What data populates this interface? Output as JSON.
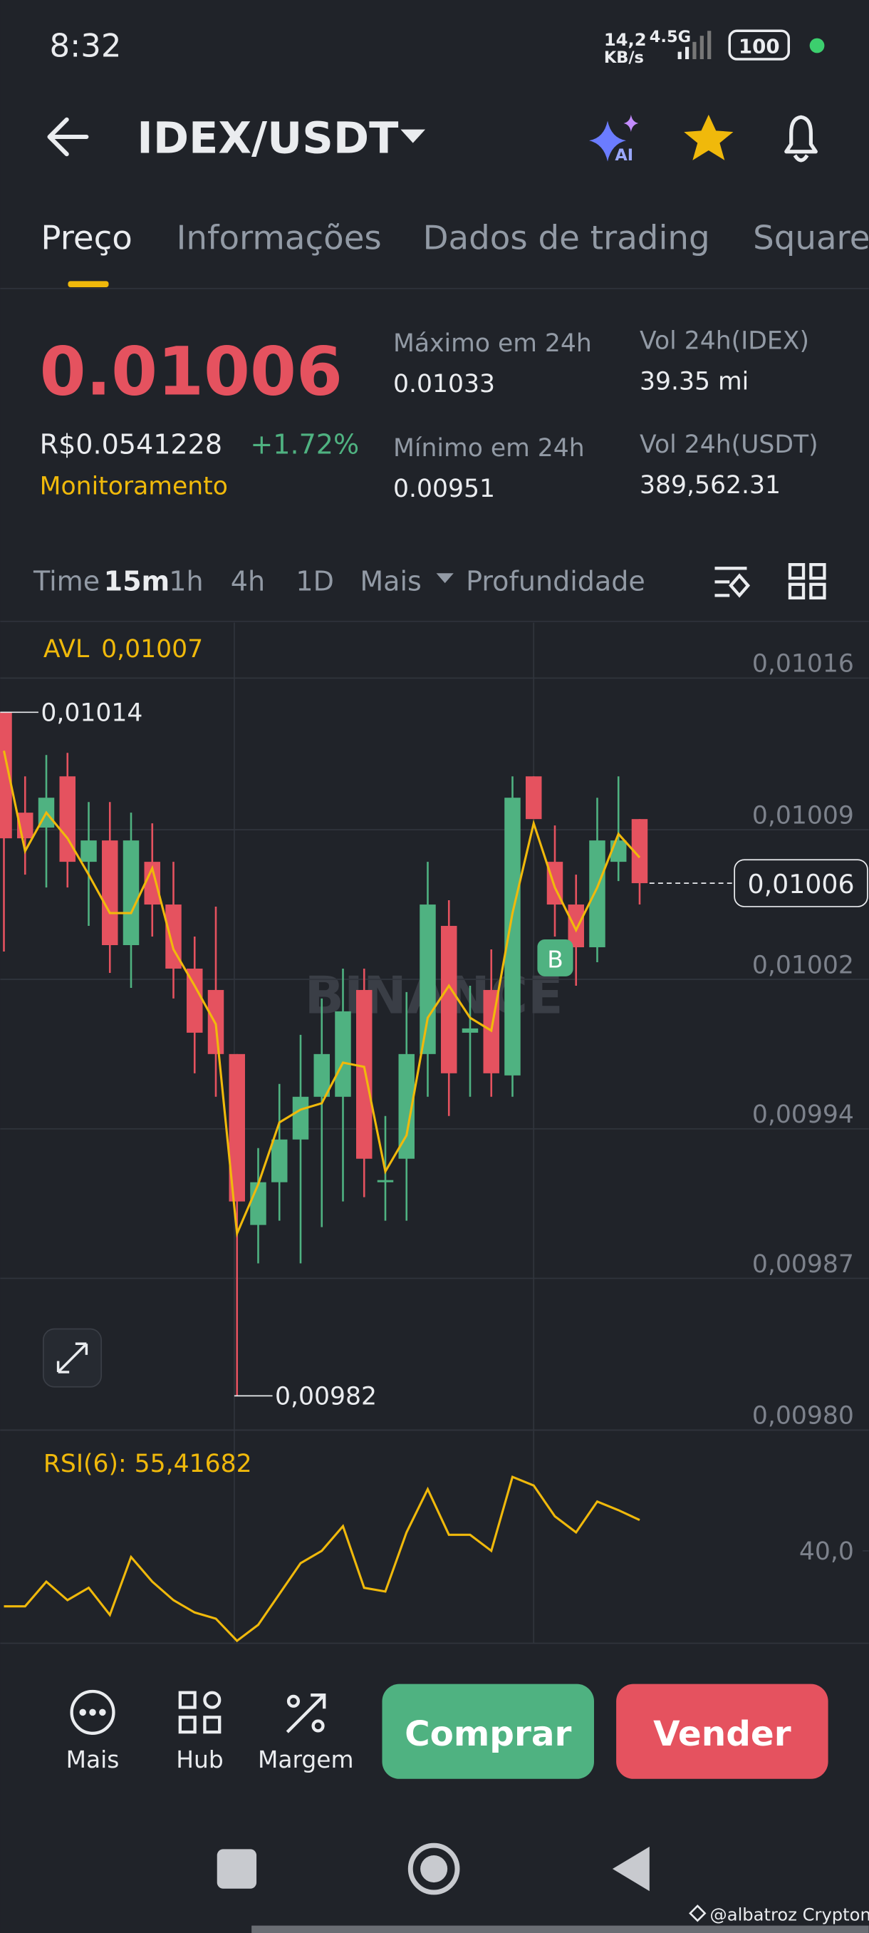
{
  "status_bar": {
    "time": "8:32",
    "speed": "14,2",
    "speed_unit": "KB/s",
    "network": "4.5G",
    "battery": "100"
  },
  "header": {
    "title": "IDEX/USDT",
    "ai_badge": "AI"
  },
  "tabs": [
    "Preço",
    "Informações",
    "Dados de trading",
    "Square"
  ],
  "ticker": {
    "price": "0.01006",
    "fiat_price": "R$0.0541228",
    "change": "+1.72%",
    "monitor": "Monitoramento",
    "stats": [
      {
        "label": "Máximo em 24h",
        "value": "0.01033"
      },
      {
        "label": "Mínimo em 24h",
        "value": "0.00951"
      },
      {
        "label": "Vol 24h(IDEX)",
        "value": "39.35 mi"
      },
      {
        "label": "Vol 24h(USDT)",
        "value": "389,562.31"
      }
    ]
  },
  "timeframes": [
    "Time",
    "15m",
    "1h",
    "4h",
    "1D",
    "Mais",
    "Profundidade"
  ],
  "chart_data": [
    {
      "type": "candlestick",
      "watermark": "BINANCE",
      "trade_marker": "B",
      "categories": [
        null,
        null,
        null,
        null,
        null,
        null,
        null,
        null,
        null,
        null,
        null,
        null,
        null,
        null,
        null,
        null,
        null,
        null,
        null,
        null,
        null,
        null,
        null,
        null,
        null,
        null,
        null,
        null,
        null,
        null,
        null
      ],
      "open": [
        0.01014,
        0.010093,
        0.010086,
        0.01011,
        0.01007,
        0.01008,
        0.010031,
        0.01007,
        0.01005,
        0.01002,
        0.01001,
        0.00998,
        0.0099,
        0.00992,
        0.00994,
        0.00996,
        0.00996,
        0.01001,
        0.00992,
        0.009931,
        0.00998,
        0.01004,
        0.00999,
        0.01001,
        0.00997,
        0.01011,
        0.01007,
        0.01005,
        0.01003,
        0.01007,
        0.01009
      ],
      "high": [
        0.01014,
        0.01011,
        0.01012,
        0.010121,
        0.010098,
        0.010098,
        0.010093,
        0.010088,
        0.01007,
        0.010035,
        0.010049,
        0.00998,
        0.009936,
        0.009966,
        0.009989,
        0.010006,
        0.01002,
        0.01002,
        0.009951,
        0.010009,
        0.01007,
        0.010052,
        0.010012,
        0.010029,
        0.01011,
        0.01011,
        0.010087,
        0.010064,
        0.0101,
        0.01011,
        0.01009
      ],
      "low": [
        0.010028,
        0.010064,
        0.010058,
        0.010058,
        0.01004,
        0.010018,
        0.010011,
        0.010035,
        0.010006,
        0.009971,
        0.00996,
        0.00982,
        0.009882,
        0.009902,
        0.009882,
        0.009899,
        0.009911,
        0.009913,
        0.009902,
        0.009902,
        0.00996,
        0.009951,
        0.00996,
        0.00996,
        0.00996,
        0.01009,
        0.010035,
        0.010012,
        0.010023,
        0.010061,
        0.01005
      ],
      "close": [
        0.010081,
        0.010081,
        0.0101,
        0.01007,
        0.01008,
        0.010031,
        0.01008,
        0.01005,
        0.01002,
        0.00999,
        0.00998,
        0.009911,
        0.00992,
        0.00994,
        0.00996,
        0.00998,
        0.01,
        0.009931,
        0.009921,
        0.00998,
        0.01005,
        0.009971,
        0.009992,
        0.009971,
        0.0101,
        0.01009,
        0.01005,
        0.01003,
        0.01008,
        0.01008,
        0.01006
      ],
      "up_color": "#4fb281",
      "down_color": "#e5525f",
      "series": [
        {
          "name": "AVL",
          "color": "#f0b90b",
          "last": {
            "value": 0.01007,
            "label": "0,01007"
          },
          "values": [
            0.010122,
            0.010075,
            0.010093,
            0.010081,
            0.010064,
            0.010046,
            0.010046,
            0.010067,
            0.010029,
            0.010012,
            0.009994,
            0.009896,
            0.009919,
            0.009948,
            0.009954,
            0.009957,
            0.009976,
            0.009974,
            0.009925,
            0.009942,
            0.009997,
            0.010012,
            0.009997,
            0.009991,
            0.010046,
            0.010088,
            0.010058,
            0.010038,
            0.010058,
            0.010083,
            0.010072
          ]
        }
      ],
      "high_label": {
        "value": 0.01014,
        "label": "0,01014"
      },
      "low_label": {
        "value": 0.00982,
        "label": "0,00982"
      },
      "last_price": {
        "value": 0.01006,
        "label": "0,01006"
      },
      "ylim": [
        0.009804,
        0.010182
      ],
      "yticks": [
        {
          "value": 0.010156,
          "label": "0,01016"
        },
        {
          "value": 0.010085,
          "label": "0,01009"
        },
        {
          "value": 0.010015,
          "label": "0,01002"
        },
        {
          "value": 0.009945,
          "label": "0,00994"
        },
        {
          "value": 0.009875,
          "label": "0,00987"
        },
        {
          "value": 0.009804,
          "label": "0,00980"
        }
      ],
      "grid": true
    },
    {
      "type": "line",
      "title": "RSI(6): 55,41682",
      "color": "#f0b90b",
      "categories": [
        null,
        null,
        null,
        null,
        null,
        null,
        null,
        null,
        null,
        null,
        null,
        null,
        null,
        null,
        null,
        null,
        null,
        null,
        null,
        null,
        null,
        null,
        null,
        null,
        null,
        null,
        null,
        null,
        null,
        null,
        null
      ],
      "values": [
        17.5,
        17.5,
        27.5,
        20,
        25,
        14,
        37.5,
        27.5,
        20,
        15,
        12.5,
        3.5,
        10,
        22.5,
        35,
        40,
        50,
        25,
        23.5,
        47.5,
        65,
        46.5,
        46.5,
        40,
        70,
        66.5,
        54,
        47.5,
        60,
        56.5,
        52.5
      ],
      "ylim": [
        0,
        90
      ],
      "yticks": [
        {
          "value": 40,
          "label": "40,0"
        }
      ]
    }
  ],
  "bottom_bar": {
    "actions": [
      "Mais",
      "Hub",
      "Margem"
    ],
    "buy": "Comprar",
    "sell": "Vender"
  },
  "footer": "@albatroz Crypton"
}
